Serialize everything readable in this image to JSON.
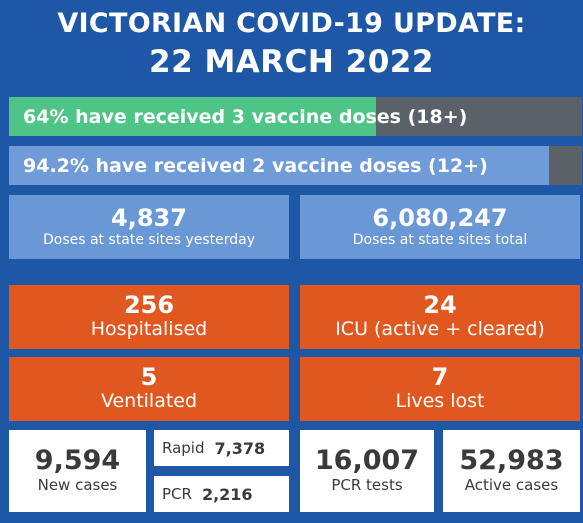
{
  "header": {
    "line1": "VICTORIAN COVID-19 UPDATE:",
    "line2": "22 MARCH 2022"
  },
  "vaccination": {
    "three_doses": {
      "text": "64% have received 3 vaccine doses (18+)",
      "percent": 64
    },
    "two_doses": {
      "text": "94.2% have received 2 vaccine doses (12+)",
      "percent": 94.2
    }
  },
  "doses": {
    "yesterday": {
      "value": "4,837",
      "label": "Doses at state sites yesterday"
    },
    "total": {
      "value": "6,080,247",
      "label": "Doses at state sites total"
    }
  },
  "hospital": {
    "hospitalised": {
      "value": "256",
      "label": "Hospitalised"
    },
    "icu": {
      "value": "24",
      "label": "ICU (active + cleared)"
    },
    "ventilated": {
      "value": "5",
      "label": "Ventilated"
    },
    "lives_lost": {
      "value": "7",
      "label": "Lives lost"
    }
  },
  "cases": {
    "new_cases": {
      "value": "9,594",
      "label": "New cases"
    },
    "rapid": {
      "label": "Rapid",
      "value": "7,378"
    },
    "pcr": {
      "label": "PCR",
      "value": "2,216"
    },
    "pcr_tests": {
      "value": "16,007",
      "label": "PCR tests"
    },
    "active_cases": {
      "value": "52,983",
      "label": "Active cases"
    }
  },
  "colors": {
    "background": "#1d57a6",
    "green": "#4ec586",
    "light_blue": "#6a98d6",
    "orange": "#e0581f",
    "grey": "#5a6169"
  }
}
